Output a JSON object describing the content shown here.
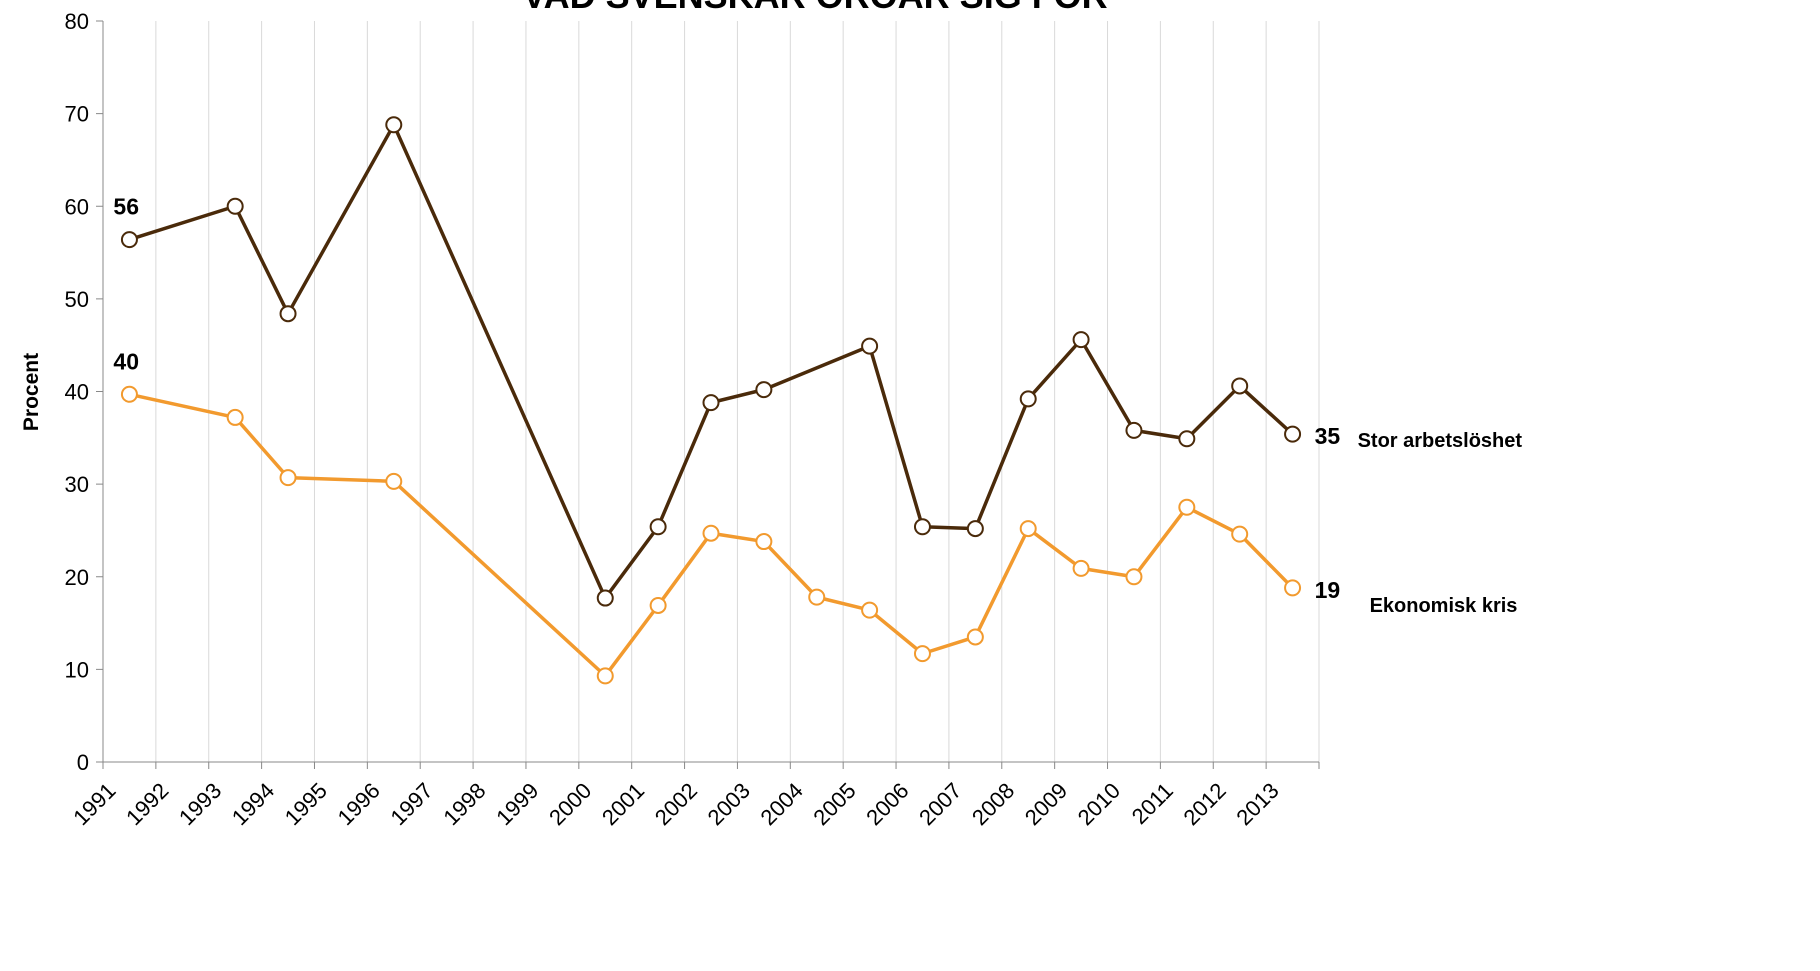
{
  "chart_data": {
    "type": "line",
    "title": "VAD SVENSKAR OROAR SIG FÖR",
    "y_label": "Procent",
    "categories": [
      "1991",
      "1992",
      "1993",
      "1994",
      "1995",
      "1996",
      "1997",
      "1998",
      "1999",
      "2000",
      "2001",
      "2002",
      "2003",
      "2004",
      "2005",
      "2006",
      "2007",
      "2008",
      "2009",
      "2010",
      "2011",
      "2012",
      "2013"
    ],
    "series": [
      {
        "name": "Stor arbetslöshet",
        "color": "#4a2a0a",
        "values": [
          56.4,
          null,
          60.0,
          48.4,
          null,
          68.8,
          null,
          null,
          null,
          17.7,
          25.4,
          38.8,
          40.2,
          null,
          44.9,
          25.4,
          25.2,
          39.2,
          45.6,
          35.8,
          34.9,
          40.6,
          35.4
        ],
        "value_labels": [
          "56",
          null,
          null,
          null,
          null,
          null,
          null,
          null,
          null,
          null,
          null,
          null,
          null,
          null,
          null,
          null,
          null,
          null,
          null,
          null,
          null,
          null,
          "35"
        ]
      },
      {
        "name": "Ekonomisk kris",
        "color": "#f29a2e",
        "values": [
          39.7,
          null,
          37.2,
          30.7,
          null,
          30.3,
          null,
          null,
          null,
          9.3,
          16.9,
          24.7,
          23.8,
          17.8,
          16.4,
          11.7,
          13.5,
          25.2,
          20.9,
          20.0,
          27.5,
          24.6,
          18.8
        ],
        "value_labels": [
          "40",
          null,
          null,
          null,
          null,
          null,
          null,
          null,
          null,
          null,
          null,
          null,
          null,
          null,
          null,
          null,
          null,
          null,
          null,
          null,
          null,
          null,
          "19"
        ]
      }
    ],
    "ylim": [
      0,
      80
    ],
    "yticks": [
      0,
      10,
      20,
      30,
      40,
      50,
      60,
      70,
      80
    ],
    "grid": "vertical"
  }
}
